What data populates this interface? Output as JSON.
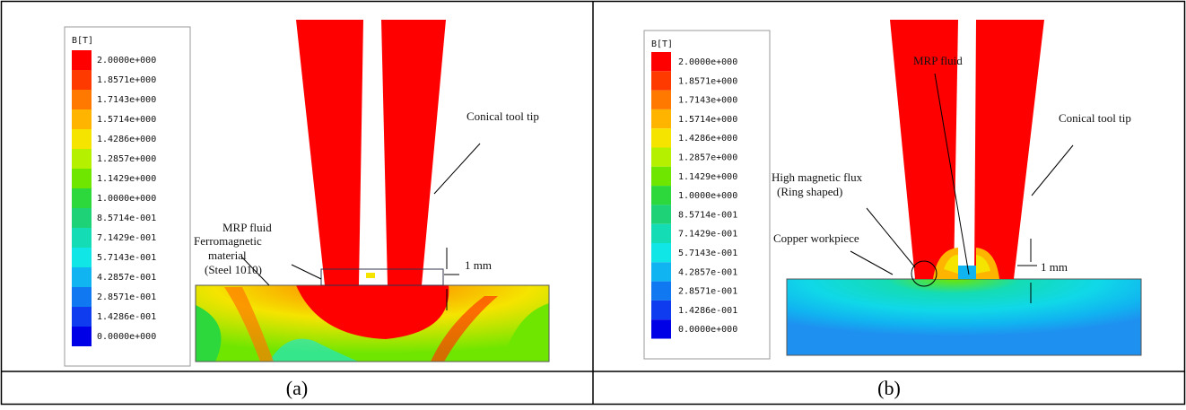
{
  "panels": [
    {
      "id": "a",
      "caption": "(a)",
      "legend_title": "B[T]",
      "labels": {
        "tool": "Conical tool tip",
        "fluid": "MRP fluid",
        "material_lines": [
          "Ferromagnetic",
          "material",
          "(Steel 1010)"
        ],
        "gap": "1 mm"
      }
    },
    {
      "id": "b",
      "caption": "(b)",
      "legend_title": "B[T]",
      "labels": {
        "tool": "Conical tool tip",
        "fluid": "MRP fluid",
        "flux_lines": [
          "High magnetic flux",
          "(Ring shaped)"
        ],
        "workpiece": "Copper workpiece",
        "gap": "1 mm"
      }
    }
  ],
  "legend": {
    "entries": [
      {
        "label": "2.0000e+000",
        "color": "#ff0000"
      },
      {
        "label": "1.8571e+000",
        "color": "#ff3a00"
      },
      {
        "label": "1.7143e+000",
        "color": "#ff7800"
      },
      {
        "label": "1.5714e+000",
        "color": "#ffb400"
      },
      {
        "label": "1.4286e+000",
        "color": "#f5e400"
      },
      {
        "label": "1.2857e+000",
        "color": "#b4f000"
      },
      {
        "label": "1.1429e+000",
        "color": "#6ee600"
      },
      {
        "label": "1.0000e+000",
        "color": "#2cd83c"
      },
      {
        "label": "8.5714e-001",
        "color": "#1ed278"
      },
      {
        "label": "7.1429e-001",
        "color": "#14dcb4"
      },
      {
        "label": "5.7143e-001",
        "color": "#10e6e6"
      },
      {
        "label": "4.2857e-001",
        "color": "#10b4f0"
      },
      {
        "label": "2.8571e-001",
        "color": "#1078f0"
      },
      {
        "label": "1.4286e-001",
        "color": "#103cf0"
      },
      {
        "label": "0.0000e+000",
        "color": "#0000e6"
      }
    ]
  },
  "legend_labels_a": [
    "2.0000e+000",
    "1.8571e+000",
    "1.7143e+000",
    "1.5714e+000",
    "1.4286e+000",
    "1.2857e+000",
    "1.1429e+000",
    "1.0000e+000",
    "8.5714e-001",
    "7.1429e-001",
    "5.7143e-001",
    "4.2857e-001",
    "2.8571e-001",
    "1.4286e-001",
    "0.0000e+000"
  ]
}
